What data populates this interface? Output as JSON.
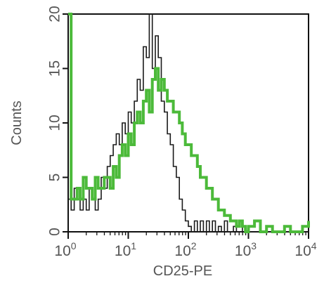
{
  "chart_data": {
    "type": "line",
    "title": "",
    "xlabel": "CD25-PE",
    "ylabel": "Counts",
    "x_scale": "log",
    "xlim": [
      1,
      10000
    ],
    "ylim": [
      0,
      20
    ],
    "grid": false,
    "legend": "none",
    "x_ticks": [
      {
        "base": "10",
        "exp": "0",
        "value": 1
      },
      {
        "base": "10",
        "exp": "1",
        "value": 10
      },
      {
        "base": "10",
        "exp": "2",
        "value": 100
      },
      {
        "base": "10",
        "exp": "3",
        "value": 1000
      },
      {
        "base": "10",
        "exp": "4",
        "value": 10000
      }
    ],
    "y_ticks": [
      "0",
      "5",
      "10",
      "15",
      "20"
    ],
    "y_tick_values": [
      0,
      5,
      10,
      15,
      20
    ],
    "series": [
      {
        "color": "#1a1a1a",
        "x": [
          1,
          1.12,
          1.26,
          1.41,
          1.58,
          1.78,
          2,
          2.24,
          2.51,
          2.82,
          3.16,
          3.55,
          3.98,
          4.47,
          5.01,
          5.62,
          6.31,
          7.08,
          7.94,
          8.91,
          10,
          11.2,
          12.6,
          14.1,
          15.8,
          17.8,
          20,
          22.4,
          25.1,
          28.2,
          31.6,
          35.5,
          39.8,
          44.7,
          50.1,
          56.2,
          63.1,
          70.8,
          79.4,
          89.1,
          100,
          112,
          126,
          141,
          158,
          178,
          200,
          224,
          251,
          282,
          316,
          355,
          398,
          447,
          501,
          562,
          631,
          708,
          794,
          891,
          1000,
          1260,
          1580,
          2000,
          2510,
          3160,
          3980,
          5010,
          6310,
          7940,
          10000
        ],
        "values": [
          3,
          2,
          4,
          3,
          2,
          3,
          2,
          4,
          3,
          2,
          3,
          5,
          4,
          6,
          7,
          8,
          9,
          8,
          10,
          9,
          11,
          10,
          12,
          14,
          13,
          17,
          16,
          20,
          15,
          18,
          16,
          12,
          11,
          9,
          8,
          6,
          5,
          3,
          2,
          1,
          0.5,
          0,
          1,
          0,
          1,
          0,
          1,
          0,
          1,
          0,
          0.5,
          0,
          1,
          0,
          0,
          0.5,
          0,
          0,
          0.5,
          0,
          0,
          0,
          0,
          0,
          0,
          0,
          0,
          0,
          0,
          0,
          0
        ]
      },
      {
        "color": "#4cba3a",
        "x": [
          1,
          1.12,
          1.26,
          1.41,
          1.58,
          1.78,
          2,
          2.24,
          2.51,
          2.82,
          3.16,
          3.55,
          3.98,
          4.47,
          5.01,
          5.62,
          6.31,
          7.08,
          7.94,
          8.91,
          10,
          11.2,
          12.6,
          14.1,
          15.8,
          17.8,
          20,
          22.4,
          25.1,
          28.2,
          31.6,
          35.5,
          39.8,
          44.7,
          50.1,
          56.2,
          63.1,
          70.8,
          79.4,
          89.1,
          100,
          112,
          126,
          141,
          158,
          178,
          200,
          224,
          251,
          282,
          316,
          355,
          398,
          447,
          501,
          562,
          631,
          708,
          794,
          891,
          1000,
          1260,
          1580,
          2000,
          2510,
          3160,
          3980,
          5010,
          6310,
          7940,
          10000
        ],
        "values": [
          20,
          3,
          3,
          4,
          3,
          5,
          4,
          4,
          3,
          5,
          4,
          4,
          5,
          5,
          4,
          6,
          5,
          7,
          8,
          7,
          9,
          8,
          10,
          11,
          10,
          12,
          13,
          11,
          14,
          15,
          13,
          14,
          13,
          12,
          12,
          11,
          11,
          10,
          9,
          8,
          8,
          7,
          7,
          6,
          5,
          5,
          4,
          4,
          3,
          3,
          2,
          2,
          1.5,
          1.5,
          1,
          1,
          0.5,
          1,
          0.5,
          0,
          0.5,
          1,
          0,
          0.5,
          0,
          0,
          0.5,
          0,
          0,
          0.5,
          1
        ]
      }
    ]
  }
}
